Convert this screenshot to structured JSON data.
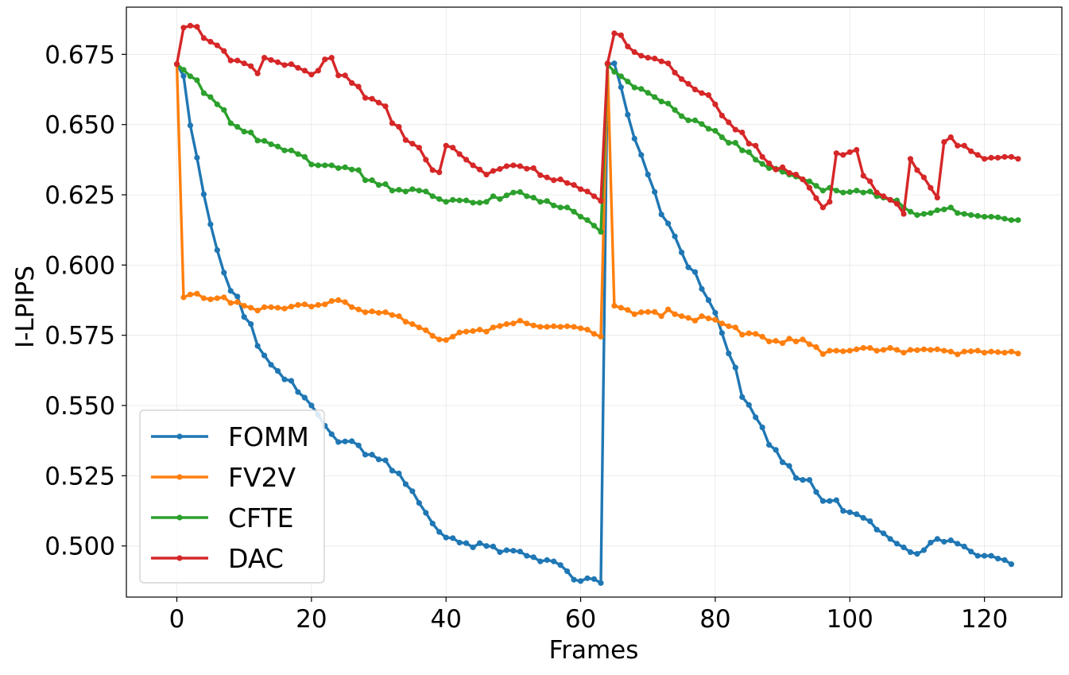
{
  "chart_data": {
    "type": "line",
    "title": "",
    "xlabel": "Frames",
    "ylabel": "I-LPIPS",
    "xlim": [
      -7.5,
      131.5
    ],
    "ylim": [
      0.4818,
      0.6918
    ],
    "xticks": [
      0,
      20,
      40,
      60,
      80,
      100,
      120
    ],
    "xtick_labels": [
      "0",
      "20",
      "40",
      "60",
      "80",
      "100",
      "120"
    ],
    "yticks": [
      0.5,
      0.525,
      0.55,
      0.575,
      0.6,
      0.625,
      0.65,
      0.675
    ],
    "ytick_labels": [
      "0.500",
      "0.525",
      "0.550",
      "0.575",
      "0.600",
      "0.625",
      "0.650",
      "0.675"
    ],
    "grid": true,
    "legend_position": "bottom-left",
    "series": [
      {
        "name": "FOMM",
        "color": "#1f77b4",
        "x_start": 0,
        "values": [
          0.6715,
          0.6673,
          0.6497,
          0.6382,
          0.6252,
          0.6145,
          0.6053,
          0.5973,
          0.5908,
          0.5888,
          0.5815,
          0.579,
          0.5712,
          0.5678,
          0.5645,
          0.5623,
          0.5593,
          0.5588,
          0.5548,
          0.5528,
          0.55,
          0.5467,
          0.5428,
          0.5398,
          0.537,
          0.5372,
          0.5373,
          0.5358,
          0.5325,
          0.5325,
          0.5308,
          0.5305,
          0.5268,
          0.5258,
          0.522,
          0.5195,
          0.5153,
          0.5118,
          0.508,
          0.505,
          0.503,
          0.5028,
          0.5012,
          0.501,
          0.4995,
          0.501,
          0.5,
          0.4998,
          0.4978,
          0.4985,
          0.4983,
          0.498,
          0.4965,
          0.496,
          0.4945,
          0.495,
          0.4945,
          0.4932,
          0.491,
          0.488,
          0.4875,
          0.4885,
          0.4882,
          0.4868,
          0.6715,
          0.6718,
          0.6633,
          0.6535,
          0.645,
          0.6392,
          0.6322,
          0.626,
          0.618,
          0.6148,
          0.6102,
          0.6045,
          0.5992,
          0.5975,
          0.5915,
          0.5875,
          0.583,
          0.5758,
          0.5685,
          0.5635,
          0.553,
          0.5502,
          0.5458,
          0.5422,
          0.536,
          0.5342,
          0.5298,
          0.5285,
          0.5242,
          0.5235,
          0.5235,
          0.5192,
          0.516,
          0.516,
          0.5163,
          0.5125,
          0.512,
          0.5113,
          0.51,
          0.5088,
          0.5058,
          0.5045,
          0.5025,
          0.5008,
          0.4995,
          0.4978,
          0.4972,
          0.4985,
          0.5012,
          0.5025,
          0.5015,
          0.502,
          0.5008,
          0.4998,
          0.498,
          0.4965,
          0.4965,
          0.4965,
          0.4955,
          0.495,
          0.4935
        ]
      },
      {
        "name": "FV2V",
        "color": "#ff7f0e",
        "x_start": 0,
        "values": [
          0.6715,
          0.5885,
          0.5895,
          0.5898,
          0.5882,
          0.5878,
          0.5882,
          0.5885,
          0.5865,
          0.5868,
          0.5855,
          0.5848,
          0.5838,
          0.585,
          0.585,
          0.5848,
          0.5845,
          0.5852,
          0.5858,
          0.586,
          0.5852,
          0.5858,
          0.586,
          0.5872,
          0.5875,
          0.5868,
          0.585,
          0.5842,
          0.5832,
          0.5835,
          0.583,
          0.5832,
          0.5822,
          0.5818,
          0.5798,
          0.579,
          0.5778,
          0.5768,
          0.5748,
          0.5735,
          0.5733,
          0.5745,
          0.576,
          0.5763,
          0.5765,
          0.577,
          0.5763,
          0.5778,
          0.5783,
          0.579,
          0.5792,
          0.5802,
          0.5792,
          0.5785,
          0.578,
          0.578,
          0.5782,
          0.578,
          0.5782,
          0.578,
          0.5775,
          0.577,
          0.5755,
          0.5745,
          0.6715,
          0.5855,
          0.5848,
          0.584,
          0.5825,
          0.5832,
          0.5833,
          0.5833,
          0.5818,
          0.5842,
          0.5825,
          0.5818,
          0.5812,
          0.5802,
          0.5818,
          0.581,
          0.5805,
          0.5792,
          0.5782,
          0.5778,
          0.5752,
          0.5757,
          0.5755,
          0.5745,
          0.5728,
          0.573,
          0.5722,
          0.5738,
          0.5728,
          0.5735,
          0.5718,
          0.5708,
          0.5683,
          0.5695,
          0.5695,
          0.5693,
          0.5695,
          0.57,
          0.5705,
          0.5705,
          0.5695,
          0.5698,
          0.5705,
          0.5698,
          0.5688,
          0.5698,
          0.5697,
          0.57,
          0.5698,
          0.57,
          0.5695,
          0.5692,
          0.5682,
          0.5692,
          0.5693,
          0.5695,
          0.5688,
          0.5692,
          0.569,
          0.5688,
          0.5692,
          0.5685
        ]
      },
      {
        "name": "CFTE",
        "color": "#2ca02c",
        "x_start": 0,
        "values": [
          0.6715,
          0.6695,
          0.6672,
          0.6658,
          0.6612,
          0.6598,
          0.6572,
          0.6552,
          0.6505,
          0.6492,
          0.6475,
          0.6472,
          0.6443,
          0.6442,
          0.643,
          0.6422,
          0.6408,
          0.6408,
          0.6395,
          0.6385,
          0.6358,
          0.6355,
          0.6355,
          0.6355,
          0.6345,
          0.6348,
          0.634,
          0.6338,
          0.6302,
          0.6302,
          0.6285,
          0.6288,
          0.6265,
          0.6268,
          0.6262,
          0.627,
          0.6265,
          0.6262,
          0.6245,
          0.6235,
          0.6225,
          0.6232,
          0.623,
          0.623,
          0.6222,
          0.6222,
          0.6225,
          0.6245,
          0.6235,
          0.6248,
          0.6258,
          0.626,
          0.6245,
          0.624,
          0.6225,
          0.6228,
          0.6212,
          0.6205,
          0.6205,
          0.619,
          0.6172,
          0.616,
          0.614,
          0.6118,
          0.6715,
          0.6688,
          0.6672,
          0.6653,
          0.6632,
          0.6627,
          0.6613,
          0.6598,
          0.6582,
          0.6575,
          0.6552,
          0.653,
          0.6515,
          0.6515,
          0.6502,
          0.6485,
          0.6478,
          0.6455,
          0.6435,
          0.6435,
          0.6408,
          0.6402,
          0.6375,
          0.636,
          0.6345,
          0.6343,
          0.6332,
          0.6322,
          0.6315,
          0.6305,
          0.6298,
          0.6282,
          0.6265,
          0.6275,
          0.6265,
          0.6258,
          0.626,
          0.6265,
          0.6258,
          0.6262,
          0.6245,
          0.624,
          0.6232,
          0.623,
          0.6205,
          0.619,
          0.6178,
          0.6182,
          0.6185,
          0.6195,
          0.6198,
          0.6205,
          0.6185,
          0.6182,
          0.6178,
          0.6175,
          0.6172,
          0.6172,
          0.617,
          0.6165,
          0.616,
          0.616
        ]
      },
      {
        "name": "DAC",
        "color": "#d62728",
        "x_start": 0,
        "values": [
          0.6715,
          0.6845,
          0.6852,
          0.6848,
          0.6808,
          0.6795,
          0.6782,
          0.6762,
          0.6728,
          0.6728,
          0.6718,
          0.6708,
          0.6682,
          0.6738,
          0.673,
          0.6722,
          0.6712,
          0.6715,
          0.6702,
          0.6692,
          0.6678,
          0.6692,
          0.6732,
          0.6738,
          0.6675,
          0.6675,
          0.6648,
          0.6635,
          0.6595,
          0.6592,
          0.6578,
          0.6565,
          0.6505,
          0.6492,
          0.6445,
          0.6432,
          0.6418,
          0.6375,
          0.6338,
          0.633,
          0.6425,
          0.6418,
          0.6395,
          0.6375,
          0.6355,
          0.634,
          0.6322,
          0.6335,
          0.6342,
          0.6352,
          0.6355,
          0.6352,
          0.6343,
          0.6345,
          0.632,
          0.6312,
          0.6302,
          0.6305,
          0.6292,
          0.6285,
          0.627,
          0.6262,
          0.6245,
          0.6228,
          0.6718,
          0.6825,
          0.6818,
          0.6778,
          0.6758,
          0.6745,
          0.6738,
          0.6735,
          0.6725,
          0.6718,
          0.6685,
          0.6662,
          0.6645,
          0.6625,
          0.6612,
          0.6605,
          0.6572,
          0.6532,
          0.6508,
          0.6482,
          0.6472,
          0.6432,
          0.6425,
          0.6385,
          0.6362,
          0.634,
          0.6348,
          0.6328,
          0.6322,
          0.6305,
          0.6275,
          0.6238,
          0.6205,
          0.6225,
          0.6398,
          0.6392,
          0.6402,
          0.641,
          0.6318,
          0.6298,
          0.6258,
          0.6245,
          0.6232,
          0.6218,
          0.6182,
          0.6378,
          0.6338,
          0.6312,
          0.6275,
          0.624,
          0.6438,
          0.6455,
          0.6425,
          0.6425,
          0.6405,
          0.6392,
          0.6378,
          0.6382,
          0.6382,
          0.6385,
          0.6385,
          0.6378
        ]
      }
    ]
  }
}
